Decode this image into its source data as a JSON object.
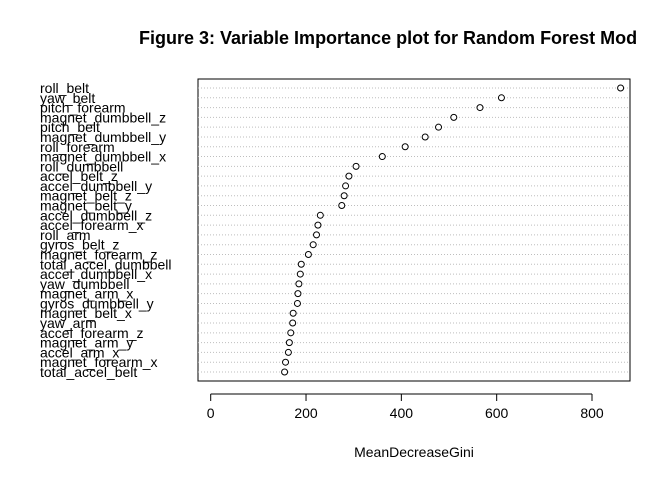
{
  "chart_data": {
    "type": "scatter",
    "title": "Figure 3: Variable Importance plot for Random Forest Mod",
    "xlabel": "MeanDecreaseGini",
    "ylabel": "",
    "xlim": [
      0,
      880
    ],
    "xticks": [
      "0",
      "200",
      "400",
      "600",
      "800"
    ],
    "grid": "dotted horizontal",
    "categories": [
      "roll_belt",
      "yaw_belt",
      "pitch_forearm",
      "magnet_dumbbell_z",
      "pitch_belt",
      "magnet_dumbbell_y",
      "roll_forearm",
      "magnet_dumbbell_x",
      "roll_dumbbell",
      "accel_belt_z",
      "accel_dumbbell_y",
      "magnet_belt_z",
      "magnet_belt_y",
      "accel_dumbbell_z",
      "accel_forearm_x",
      "roll_arm",
      "gyros_belt_z",
      "magnet_forearm_z",
      "total_accel_dumbbell",
      "accel_dumbbell_x",
      "yaw_dumbbell",
      "magnet_arm_x",
      "gyros_dumbbell_y",
      "magnet_belt_x",
      "yaw_arm",
      "accel_forearm_z",
      "magnet_arm_y",
      "accel_arm_x",
      "magnet_forearm_x",
      "total_accel_belt"
    ],
    "values": [
      860,
      610,
      565,
      510,
      478,
      450,
      408,
      360,
      305,
      290,
      283,
      280,
      275,
      230,
      225,
      222,
      215,
      205,
      190,
      188,
      185,
      183,
      182,
      173,
      172,
      168,
      165,
      163,
      157,
      155
    ]
  }
}
